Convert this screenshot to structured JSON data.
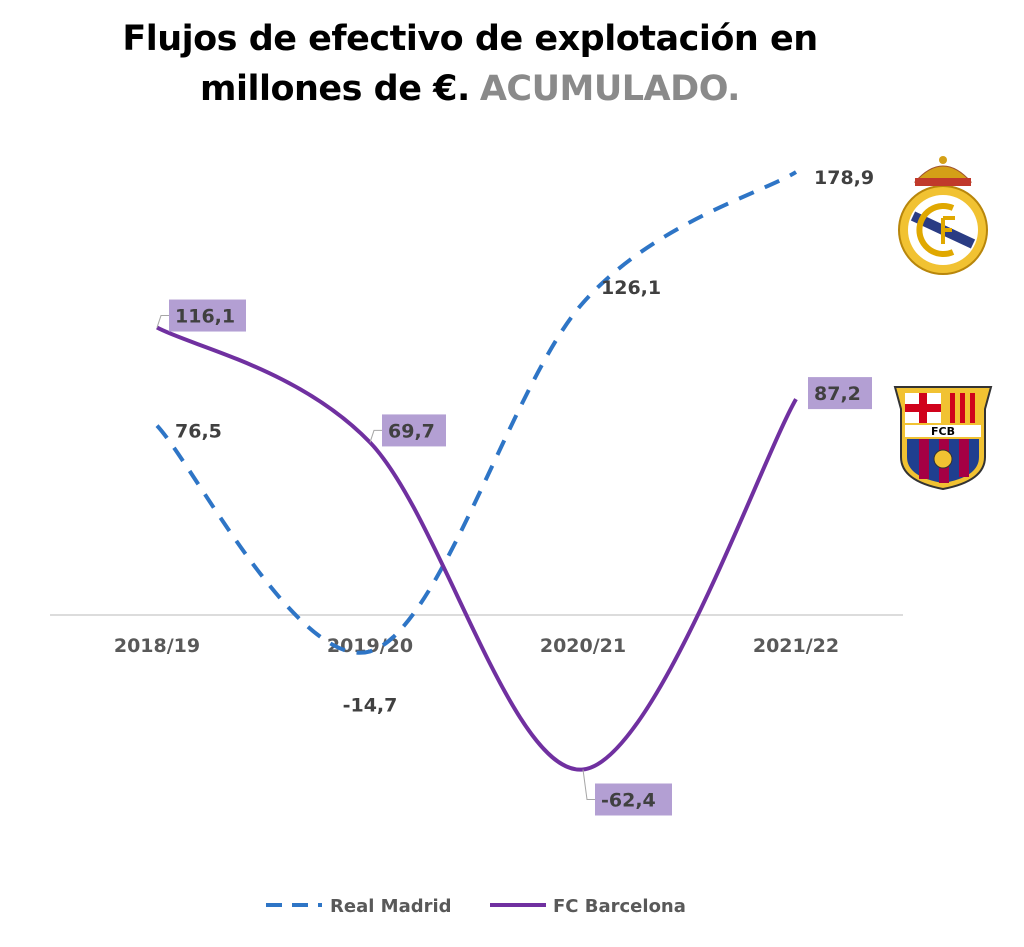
{
  "title_line1": "Flujos de efectivo de explotación en",
  "title_line2_a": "millones de €.",
  "title_line2_b": "ACUMULADO.",
  "colors": {
    "real_madrid": "#2e75c6",
    "fc_barcelona": "#7030a0",
    "label_box": "#b39fd3",
    "axis": "#d0d0d0"
  },
  "chart_data": {
    "type": "line",
    "title": "Flujos de efectivo de explotación en millones de €. ACUMULADO.",
    "categories": [
      "2018/19",
      "2019/20",
      "2020/21",
      "2021/22"
    ],
    "series": [
      {
        "name": "Real Madrid",
        "values": [
          76.5,
          -14.7,
          126.1,
          178.9
        ],
        "labels": [
          "76,5",
          "-14,7",
          "126,1",
          "178,9"
        ],
        "style": "dashed"
      },
      {
        "name": "FC Barcelona",
        "values": [
          116.1,
          69.7,
          -62.4,
          87.2
        ],
        "labels": [
          "116,1",
          "69,7",
          "-62,4",
          "87,2"
        ],
        "style": "solid"
      }
    ],
    "xlabel": "",
    "ylabel": "",
    "ylim": [
      -100,
      200
    ],
    "grid": false,
    "legend": "bottom",
    "logos": [
      "Real Madrid crest",
      "FC Barcelona crest"
    ],
    "logo_text": {
      "fcb": "FCB"
    }
  }
}
